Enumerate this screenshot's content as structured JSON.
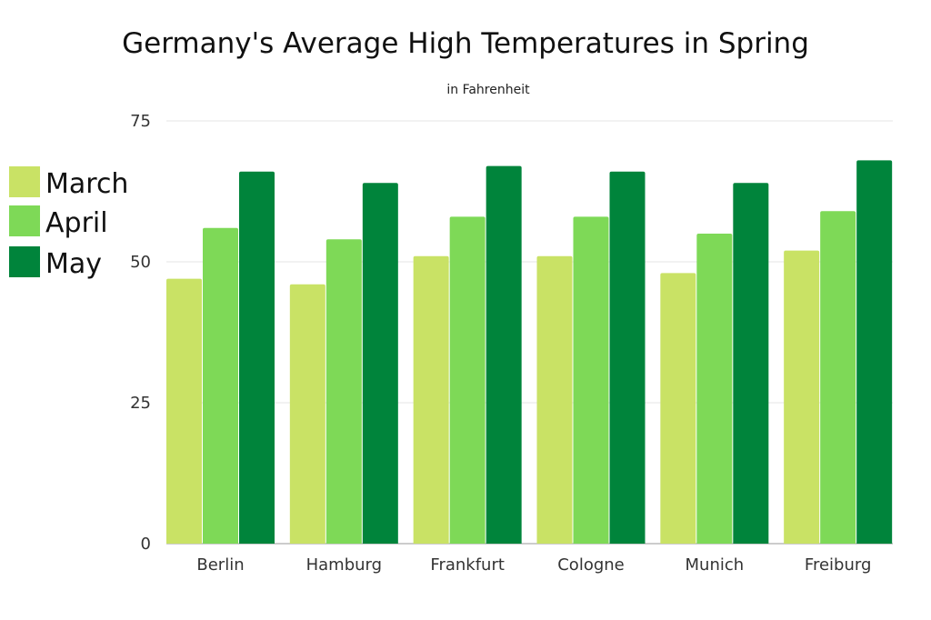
{
  "chart_data": {
    "type": "bar",
    "title": "Germany's Average High Temperatures in Spring",
    "subtitle": "in Fahrenheit",
    "xlabel": "",
    "ylabel": "",
    "ylim": [
      0,
      75
    ],
    "yticks": [
      "0",
      "25",
      "50",
      "75"
    ],
    "grid": true,
    "legend_position": "left",
    "categories": [
      "Berlin",
      "Hamburg",
      "Frankfurt",
      "Cologne",
      "Munich",
      "Freiburg"
    ],
    "series": [
      {
        "name": "March",
        "color": "#c9e265",
        "values": [
          47,
          46,
          51,
          51,
          48,
          52
        ]
      },
      {
        "name": "April",
        "color": "#7ed957",
        "values": [
          56,
          54,
          58,
          58,
          55,
          59
        ]
      },
      {
        "name": "May",
        "color": "#00843b",
        "values": [
          66,
          64,
          67,
          66,
          64,
          68
        ]
      }
    ]
  }
}
